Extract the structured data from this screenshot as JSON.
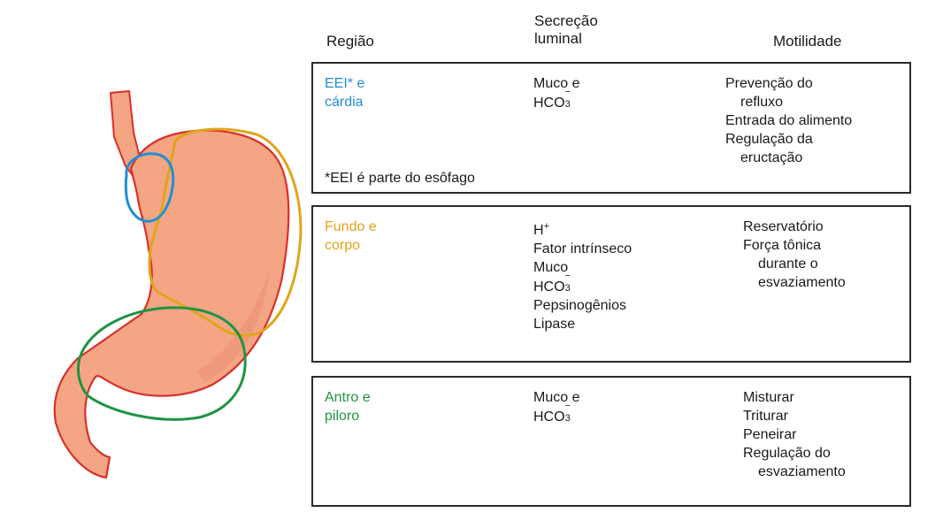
{
  "headers": {
    "region": "Região",
    "secretion_line1": "Secreção",
    "secretion_line2": "luminal",
    "motility": "Motilidade"
  },
  "colors": {
    "eei": "#1f8fd0",
    "fundo": "#e0a51a",
    "antro": "#1f9444",
    "stomach_fill": "#f4a584",
    "stomach_outline": "#d9302a"
  },
  "rows": {
    "eei": {
      "region_line1": "EEI* e",
      "region_line2": "cárdia",
      "sec_line1": "Muco e",
      "hco_base": "HCO",
      "hco_sub": "3",
      "hco_charge": "−",
      "mot": [
        "Prevenção do",
        "refluxo",
        "Entrada do alimento",
        "Regulação da",
        "eructação"
      ],
      "note": "*EEI é parte do esôfago"
    },
    "fundo": {
      "region_line1": "Fundo e",
      "region_line2": "corpo",
      "h_base": "H",
      "h_charge": "+",
      "sec": [
        "Fator intrínseco",
        "Muco"
      ],
      "hco_base": "HCO",
      "hco_sub": "3",
      "hco_charge": "−",
      "sec_after": [
        "Pepsinogênios",
        "Lipase"
      ],
      "mot": [
        "Reservatório",
        "Força tônica",
        "durante o",
        "esvaziamento"
      ]
    },
    "antro": {
      "region_line1": "Antro e",
      "region_line2": "piloro",
      "sec_line1": "Muco e",
      "hco_base": "HCO",
      "hco_sub": "3",
      "hco_charge": "−",
      "mot": [
        "Misturar",
        "Triturar",
        "Peneirar",
        "Regulação do",
        "esvaziamento"
      ]
    }
  }
}
